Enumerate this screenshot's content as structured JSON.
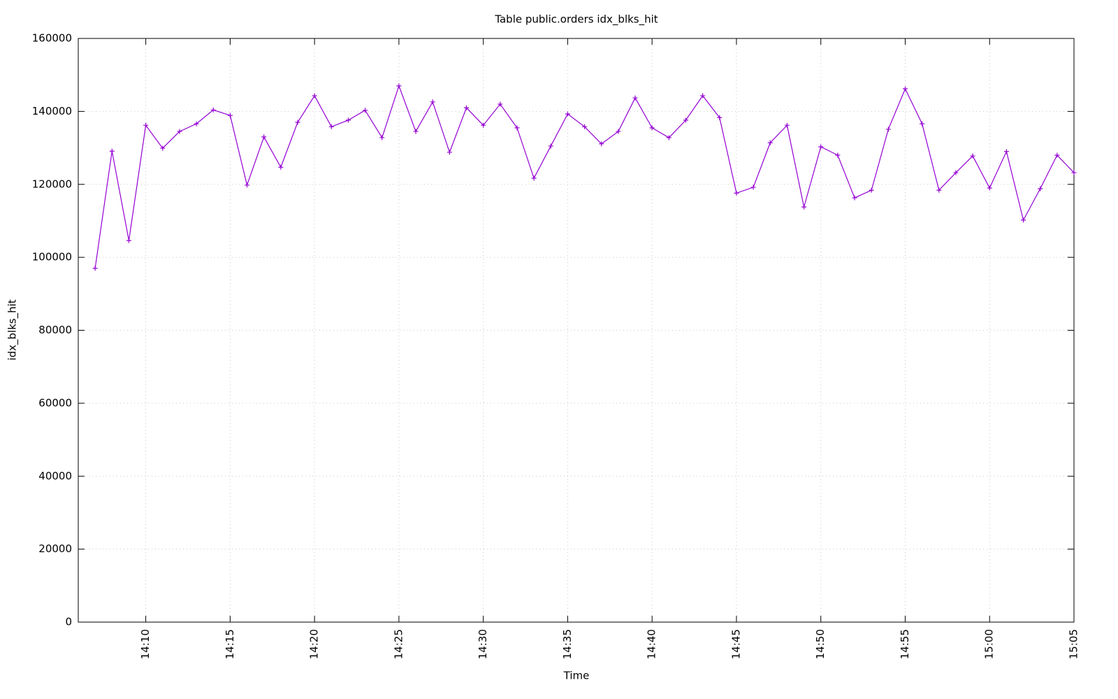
{
  "chart_data": {
    "type": "line",
    "title": "Table public.orders idx_blks_hit",
    "x_label": "Time",
    "y_label": "idx_blks_hit",
    "x": [
      "14:07",
      "14:08",
      "14:09",
      "14:10",
      "14:11",
      "14:12",
      "14:13",
      "14:14",
      "14:15",
      "14:16",
      "14:17",
      "14:18",
      "14:19",
      "14:20",
      "14:21",
      "14:22",
      "14:23",
      "14:24",
      "14:25",
      "14:26",
      "14:27",
      "14:28",
      "14:29",
      "14:30",
      "14:31",
      "14:32",
      "14:33",
      "14:34",
      "14:35",
      "14:36",
      "14:37",
      "14:38",
      "14:39",
      "14:40",
      "14:41",
      "14:42",
      "14:43",
      "14:44",
      "14:45",
      "14:46",
      "14:47",
      "14:48",
      "14:49",
      "14:50",
      "14:51",
      "14:52",
      "14:53",
      "14:54",
      "14:55",
      "14:56",
      "14:57",
      "14:58",
      "14:59",
      "15:00",
      "15:01",
      "15:02",
      "15:03",
      "15:04",
      "15:05"
    ],
    "series": [
      {
        "name": "idx_blks_hit",
        "color": "#9400d3",
        "values": [
          97000,
          129100,
          104600,
          136200,
          129900,
          134500,
          136600,
          140400,
          138900,
          119800,
          133000,
          124700,
          137000,
          144300,
          135800,
          137600,
          140300,
          132800,
          147000,
          134500,
          142600,
          128800,
          141000,
          136200,
          142000,
          135500,
          121700,
          130500,
          139300,
          135800,
          131100,
          134500,
          143700,
          135500,
          132800,
          137600,
          144300,
          138300,
          117600,
          119200,
          131400,
          136200,
          113800,
          130300,
          128000,
          116300,
          118400,
          135100,
          146200,
          136600,
          118400,
          123200,
          127800,
          119000,
          129000,
          110200,
          118800,
          128000,
          123200
        ]
      }
    ],
    "xlim": [
      "14:06",
      "15:05"
    ],
    "xticks": [
      "14:10",
      "14:15",
      "14:20",
      "14:25",
      "14:30",
      "14:35",
      "14:40",
      "14:45",
      "14:50",
      "14:55",
      "15:00",
      "15:05"
    ],
    "ylim": [
      0,
      160000
    ],
    "yticks": [
      0,
      20000,
      40000,
      60000,
      80000,
      100000,
      120000,
      140000,
      160000
    ],
    "grid": true
  }
}
